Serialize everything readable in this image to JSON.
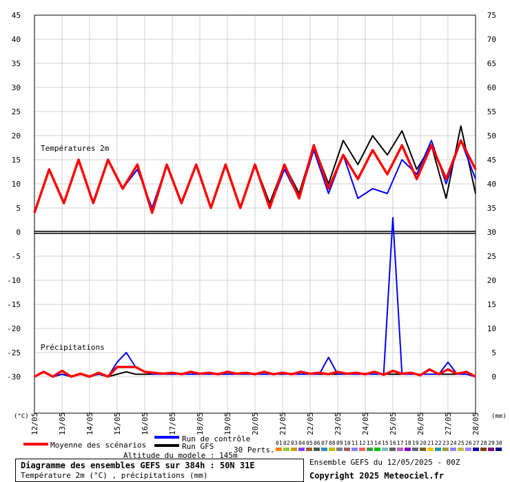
{
  "chart_data": {
    "type": "line",
    "title": "Diagramme des ensembles GEFS sur 384h : 50N 31E",
    "subtitle": "Température 2m (°C) , précipitations (mm)",
    "ylabel_left": "(°C)",
    "ylabel_right": "(mm)",
    "yticks_left": [
      "45",
      "40",
      "35",
      "30",
      "25",
      "20",
      "15",
      "10",
      "5",
      "0",
      "-5",
      "-10",
      "-15",
      "-20",
      "-25",
      "-30"
    ],
    "yticks_right": [
      "75",
      "70",
      "65",
      "60",
      "55",
      "50",
      "45",
      "40",
      "35",
      "30",
      "25",
      "20",
      "15",
      "10",
      "5",
      "0"
    ],
    "xticks": [
      "12/05",
      "13/05",
      "14/05",
      "15/05",
      "16/05",
      "17/05",
      "18/05",
      "19/05",
      "20/05",
      "21/05",
      "22/05",
      "23/05",
      "24/05",
      "25/05",
      "26/05",
      "27/05",
      "28/05"
    ],
    "section_temp_label": "Températures 2m",
    "section_precip_label": "Précipitations",
    "ylim_left": [
      -30,
      45
    ],
    "ylim_right": [
      0,
      75
    ],
    "temperature_series": [
      {
        "name": "Moyenne des scénarios",
        "color": "#ff0000",
        "values": [
          4,
          13,
          6,
          15,
          6,
          15,
          9,
          14,
          4,
          14,
          6,
          14,
          5,
          14,
          5,
          14,
          5,
          14,
          7,
          18,
          9,
          16,
          11,
          17,
          12,
          18,
          11,
          18,
          11,
          19,
          13
        ]
      },
      {
        "name": "Run de contrôle",
        "color": "#0000ff",
        "values": [
          4,
          13,
          6,
          15,
          6,
          15,
          9,
          13,
          5,
          14,
          6,
          14,
          5,
          14,
          5,
          14,
          5,
          13,
          7,
          17,
          8,
          16,
          7,
          9,
          8,
          15,
          12,
          19,
          10,
          19,
          11
        ]
      },
      {
        "name": "Run GFS",
        "color": "#000000",
        "values": [
          4,
          13,
          6,
          15,
          6,
          15,
          9,
          14,
          4,
          14,
          6,
          14,
          5,
          14,
          5,
          14,
          6,
          14,
          8,
          18,
          10,
          19,
          14,
          20,
          16,
          21,
          13,
          18,
          7,
          22,
          8
        ]
      }
    ],
    "precipitation_series": [
      {
        "name": "Moyenne des scénarios",
        "color": "#ff0000",
        "values": [
          0,
          1,
          0,
          1.2,
          0,
          0.6,
          0,
          0.8,
          0,
          2,
          2,
          2,
          1,
          0.8,
          0.6,
          0.8,
          0.5,
          1,
          0.6,
          0.8,
          0.5,
          1,
          0.6,
          0.8,
          0.5,
          1,
          0.5,
          0.8,
          0.5,
          1,
          0.6,
          0.8,
          0.5,
          1,
          0.6,
          0.8,
          0.5,
          1,
          0.4,
          1.2,
          0.6,
          0.8,
          0.3,
          1.5,
          0.5,
          1.5,
          0.6,
          1,
          0
        ]
      },
      {
        "name": "Run de contrôle",
        "color": "#0000ff",
        "values": [
          0,
          1,
          0,
          0.5,
          0,
          0.5,
          0,
          0.5,
          0,
          3,
          5,
          2,
          1,
          0.5,
          0.5,
          0.5,
          0.5,
          0.5,
          0.5,
          0.5,
          0.5,
          0.5,
          0.5,
          0.5,
          0.5,
          0.5,
          0.5,
          0.5,
          0.5,
          0.5,
          0.5,
          0.5,
          4,
          0.5,
          0.5,
          0.5,
          0.5,
          0.5,
          0.5,
          33,
          0.5,
          0.5,
          0.5,
          0.5,
          0.5,
          3,
          0.5,
          0.5,
          0
        ]
      },
      {
        "name": "Run GFS",
        "color": "#000000",
        "values": [
          0,
          1,
          0,
          0.5,
          0,
          0.5,
          0,
          0.5,
          0,
          0.5,
          1,
          0.5,
          0.5,
          0.5,
          0.5,
          0.5,
          0.5,
          0.5,
          0.5,
          0.5,
          0.5,
          0.5,
          0.5,
          0.5,
          0.5,
          0.5,
          0.5,
          0.5,
          0.5,
          0.5,
          0.5,
          0.5,
          0.5,
          0.5,
          0.5,
          0.5,
          0.5,
          0.5,
          0.5,
          0.5,
          0.5,
          0.5,
          0.5,
          0.5,
          0.5,
          0.5,
          0.5,
          1,
          0
        ]
      }
    ],
    "perturbations_count_label": "30 Perts.",
    "perturbation_ids": [
      "01",
      "02",
      "03",
      "04",
      "05",
      "06",
      "07",
      "08",
      "09",
      "10",
      "11",
      "12",
      "13",
      "14",
      "15",
      "16",
      "17",
      "18",
      "19",
      "20",
      "21",
      "22",
      "23",
      "24",
      "25",
      "26",
      "27",
      "28",
      "29",
      "30"
    ],
    "perturbation_colors": [
      "#ff8000",
      "#88cc44",
      "#c8a000",
      "#8040ff",
      "#a05a2c",
      "#406040",
      "#2e8bc0",
      "#c0c000",
      "#808080",
      "#a06060",
      "#8080ff",
      "#ff6060",
      "#40a040",
      "#00c000",
      "#80c0c0",
      "#606060",
      "#c060c0",
      "#8000c0",
      "#606080",
      "#806020",
      "#ffc000",
      "#20a0a0",
      "#a0a040",
      "#8888ff",
      "#c0c040",
      "#a080ff",
      "#0000a0",
      "#804000",
      "#800080",
      "#000080"
    ],
    "grid": true
  },
  "legend": {
    "mean_label": "Moyenne des scénarios",
    "control_label": "Run de contrôle",
    "gfs_label": "Run GFS",
    "altitude": "Altitude du modele : 145m"
  },
  "footer": {
    "title": "Diagramme des ensembles GEFS sur 384h : 50N 31E",
    "subtitle": "Température 2m (°C) , précipitations (mm)",
    "ensemble": "Ensemble GEFS du 12/05/2025 - 00Z",
    "copyright": "Copyright 2025 Meteociel.fr"
  }
}
